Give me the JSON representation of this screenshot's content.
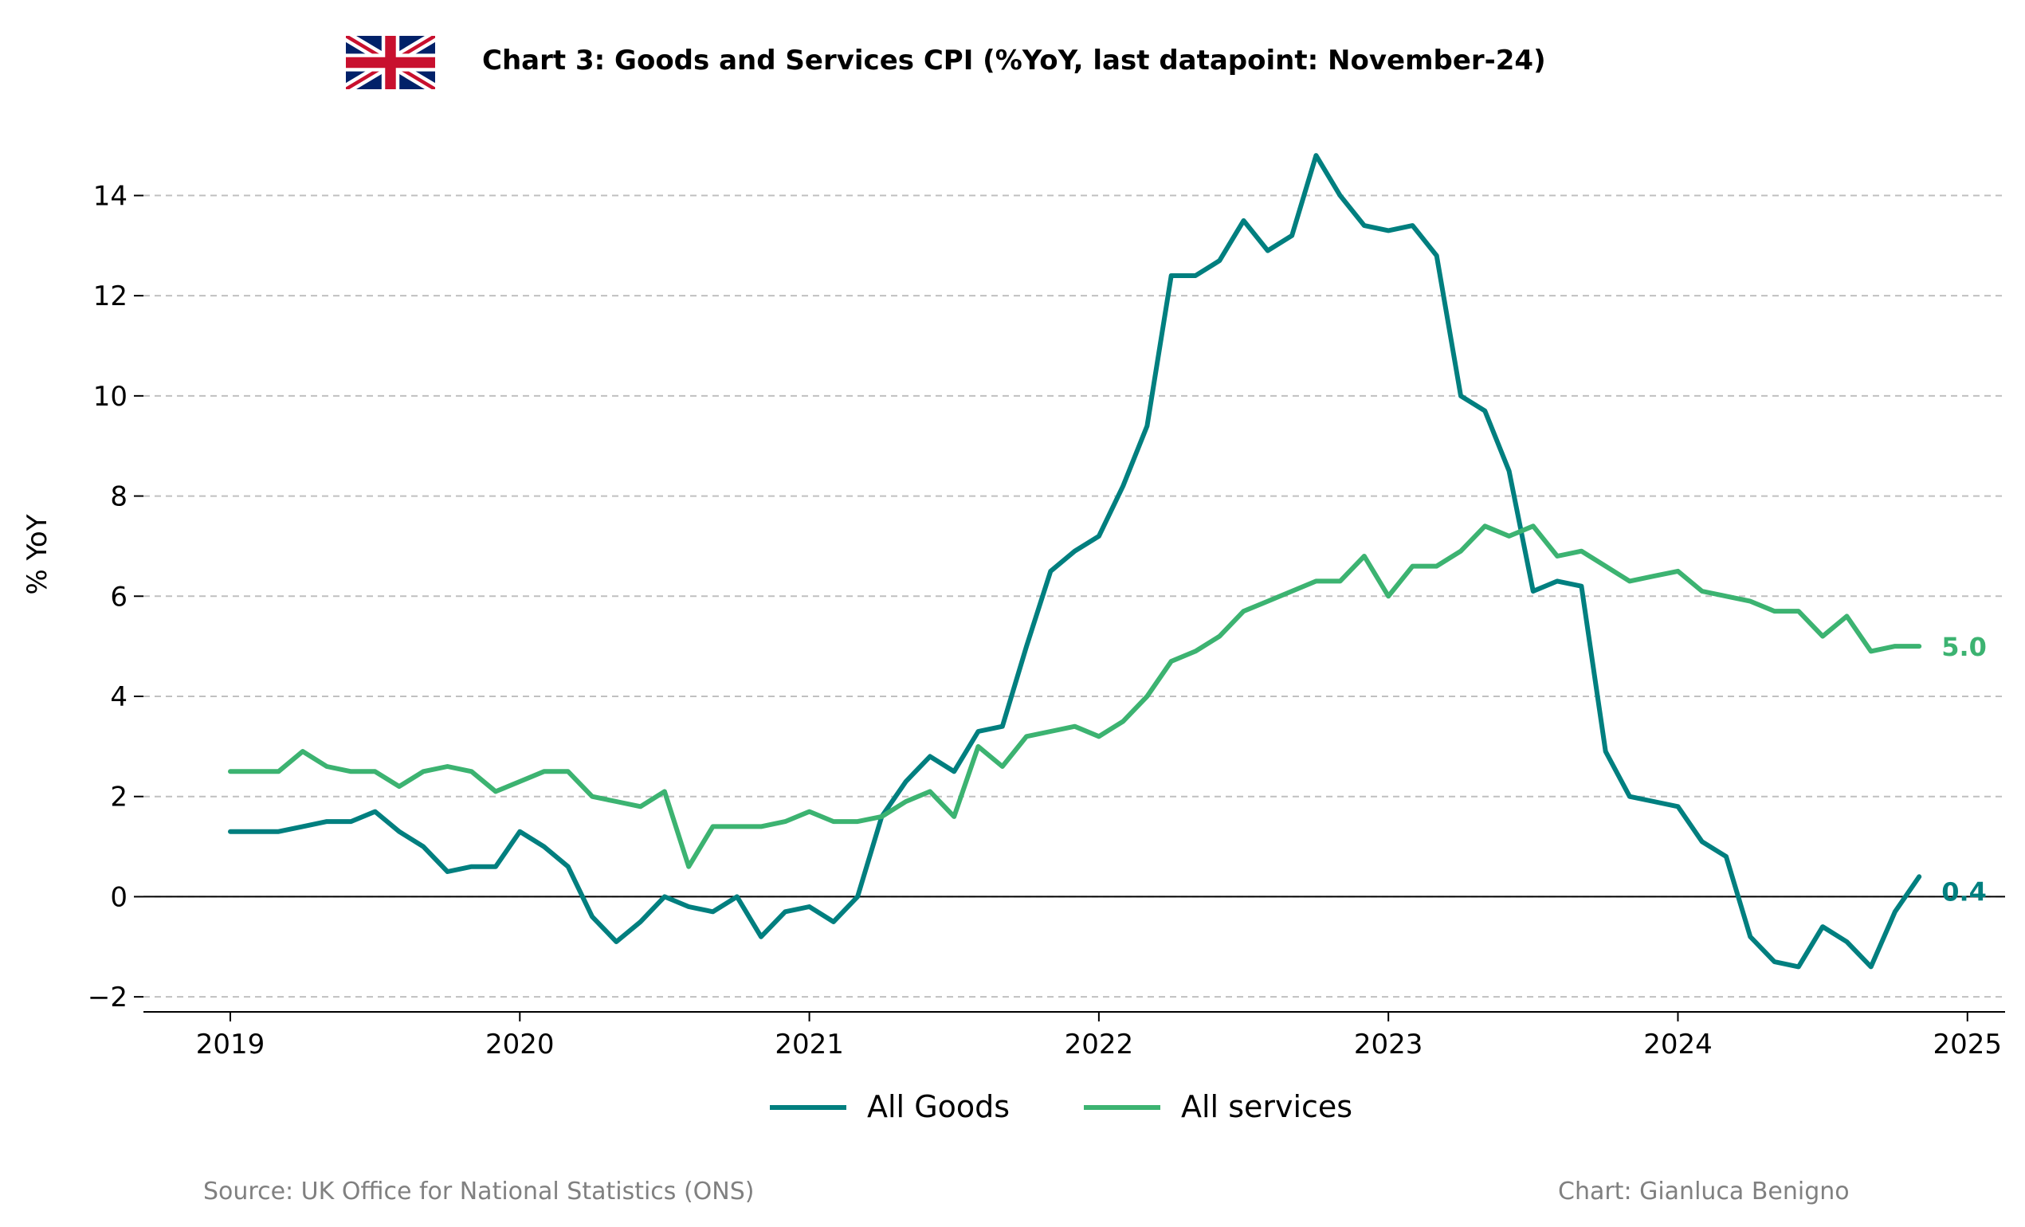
{
  "chart_data": {
    "type": "line",
    "title": "Chart 3: Goods and Services CPI (%YoY, last datapoint: November-24)",
    "ylabel": "% YoY",
    "xlabel": "",
    "xlim": [
      2018.7,
      2025.13
    ],
    "ylim": [
      -2.3,
      15.2
    ],
    "x_ticks": [
      2019,
      2020,
      2021,
      2022,
      2023,
      2024,
      2025
    ],
    "x_tick_labels": [
      "2019",
      "2020",
      "2021",
      "2022",
      "2023",
      "2024",
      "2025"
    ],
    "y_ticks": [
      -2,
      0,
      2,
      4,
      6,
      8,
      10,
      12,
      14
    ],
    "y_tick_labels": [
      "−2",
      "0",
      "2",
      "4",
      "6",
      "8",
      "10",
      "12",
      "14"
    ],
    "grid": "horizontal dashed",
    "zero_line": true,
    "legend_position": "bottom-center",
    "x_start": "2019-01",
    "x_end": "2024-11",
    "series": [
      {
        "name": "All Goods",
        "color": "#007f7f",
        "end_label": "0.4",
        "values": [
          1.3,
          1.3,
          1.3,
          1.4,
          1.5,
          1.5,
          1.7,
          1.3,
          1.0,
          0.5,
          0.6,
          0.6,
          1.3,
          1.0,
          0.6,
          -0.4,
          -0.9,
          -0.5,
          0.0,
          -0.2,
          -0.3,
          0.0,
          -0.8,
          -0.3,
          -0.2,
          -0.5,
          0.0,
          1.6,
          2.3,
          2.8,
          2.5,
          3.3,
          3.4,
          5.0,
          6.5,
          6.9,
          7.2,
          8.2,
          9.4,
          12.4,
          12.4,
          12.7,
          13.5,
          12.9,
          13.2,
          14.8,
          14.0,
          13.4,
          13.3,
          13.4,
          12.8,
          10.0,
          9.7,
          8.5,
          6.1,
          6.3,
          6.2,
          2.9,
          2.0,
          1.9,
          1.8,
          1.1,
          0.8,
          -0.8,
          -1.3,
          -1.4,
          -0.6,
          -0.9,
          -1.4,
          -0.3,
          0.4
        ]
      },
      {
        "name": "All services",
        "color": "#3cb371",
        "end_label": "5.0",
        "values": [
          2.5,
          2.5,
          2.5,
          2.9,
          2.6,
          2.5,
          2.5,
          2.2,
          2.5,
          2.6,
          2.5,
          2.1,
          2.3,
          2.5,
          2.5,
          2.0,
          1.9,
          1.8,
          2.1,
          0.6,
          1.4,
          1.4,
          1.4,
          1.5,
          1.7,
          1.5,
          1.5,
          1.6,
          1.9,
          2.1,
          1.6,
          3.0,
          2.6,
          3.2,
          3.3,
          3.4,
          3.2,
          3.5,
          4.0,
          4.7,
          4.9,
          5.2,
          5.7,
          5.9,
          6.1,
          6.3,
          6.3,
          6.8,
          6.0,
          6.6,
          6.6,
          6.9,
          7.4,
          7.2,
          7.4,
          6.8,
          6.9,
          6.6,
          6.3,
          6.4,
          6.5,
          6.1,
          6.0,
          5.9,
          5.7,
          5.7,
          5.2,
          5.6,
          4.9,
          5.0,
          5.0
        ]
      }
    ]
  },
  "footer": {
    "source": "Source: UK Office for National Statistics (ONS)",
    "credit": "Chart: Gianluca Benigno"
  }
}
